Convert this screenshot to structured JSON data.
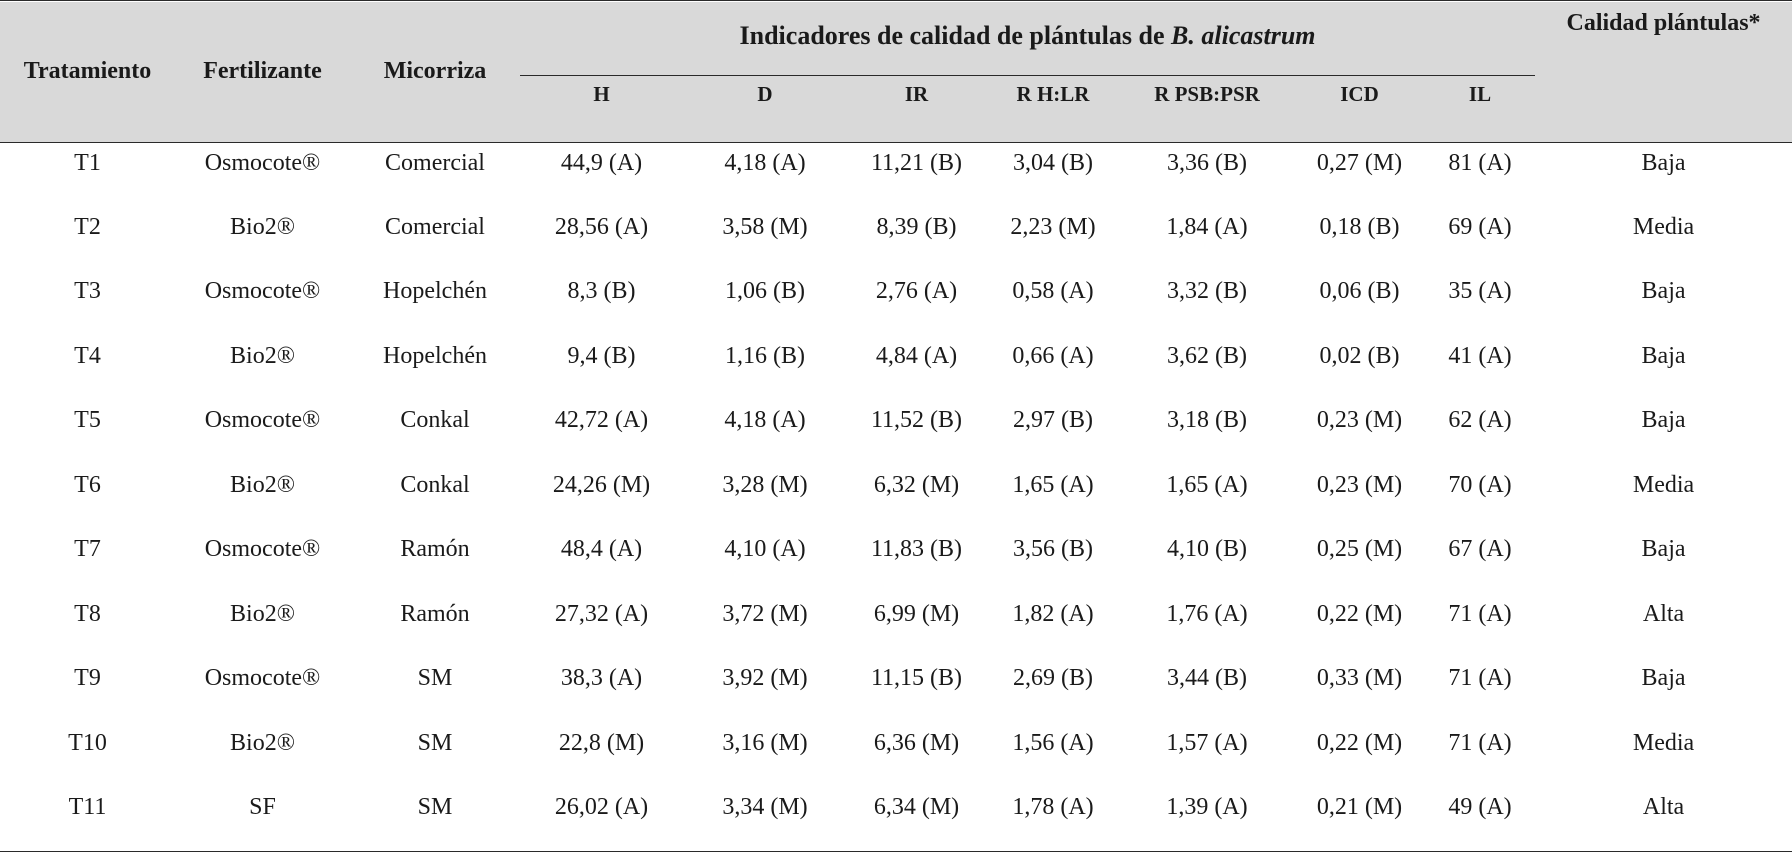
{
  "table": {
    "headers": {
      "tratamiento": "Tratamiento",
      "fertilizante": "Fertilizante",
      "micorriza": "Micorriza",
      "group_prefix": "Indicadores de calidad de plántulas de ",
      "group_species": "B. alicastrum",
      "calidad": "Calidad plántulas*",
      "indicators": [
        "H",
        "D",
        "IR",
        "R H:LR",
        "R PSB:PSR",
        "ICD",
        "IL"
      ]
    },
    "rows": [
      [
        "T1",
        "Osmocote®",
        "Comercial",
        "44,9 (A)",
        "4,18 (A)",
        "11,21 (B)",
        "3,04 (B)",
        "3,36 (B)",
        "0,27 (M)",
        "81 (A)",
        "Baja"
      ],
      [
        "T2",
        "Bio2®",
        "Comercial",
        "28,56 (A)",
        "3,58 (M)",
        "8,39 (B)",
        "2,23 (M)",
        "1,84 (A)",
        "0,18 (B)",
        "69 (A)",
        "Media"
      ],
      [
        "T3",
        "Osmocote®",
        "Hopelchén",
        "8,3 (B)",
        "1,06 (B)",
        "2,76 (A)",
        "0,58 (A)",
        "3,32 (B)",
        "0,06 (B)",
        "35 (A)",
        "Baja"
      ],
      [
        "T4",
        "Bio2®",
        "Hopelchén",
        "9,4 (B)",
        "1,16 (B)",
        "4,84 (A)",
        "0,66 (A)",
        "3,62 (B)",
        "0,02 (B)",
        "41 (A)",
        "Baja"
      ],
      [
        "T5",
        "Osmocote®",
        "Conkal",
        "42,72 (A)",
        "4,18 (A)",
        "11,52 (B)",
        "2,97 (B)",
        "3,18 (B)",
        "0,23 (M)",
        "62 (A)",
        "Baja"
      ],
      [
        "T6",
        "Bio2®",
        "Conkal",
        "24,26 (M)",
        "3,28 (M)",
        "6,32 (M)",
        "1,65 (A)",
        "1,65 (A)",
        "0,23 (M)",
        "70 (A)",
        "Media"
      ],
      [
        "T7",
        "Osmocote®",
        "Ramón",
        "48,4 (A)",
        "4,10 (A)",
        "11,83 (B)",
        "3,56 (B)",
        "4,10 (B)",
        "0,25 (M)",
        "67 (A)",
        "Baja"
      ],
      [
        "T8",
        "Bio2®",
        "Ramón",
        "27,32 (A)",
        "3,72 (M)",
        "6,99 (M)",
        "1,82 (A)",
        "1,76 (A)",
        "0,22 (M)",
        "71 (A)",
        "Alta"
      ],
      [
        "T9",
        "Osmocote®",
        "SM",
        "38,3 (A)",
        "3,92 (M)",
        "11,15 (B)",
        "2,69 (B)",
        "3,44 (B)",
        "0,33 (M)",
        "71 (A)",
        "Baja"
      ],
      [
        "T10",
        "Bio2®",
        "SM",
        "22,8 (M)",
        "3,16 (M)",
        "6,36 (M)",
        "1,56 (A)",
        "1,57 (A)",
        "0,22 (M)",
        "71 (A)",
        "Media"
      ],
      [
        "T11",
        "SF",
        "SM",
        "26,02 (A)",
        "3,34 (M)",
        "6,34 (M)",
        "1,78 (A)",
        "1,39 (A)",
        "0,21 (M)",
        "49 (A)",
        "Alta"
      ]
    ]
  }
}
